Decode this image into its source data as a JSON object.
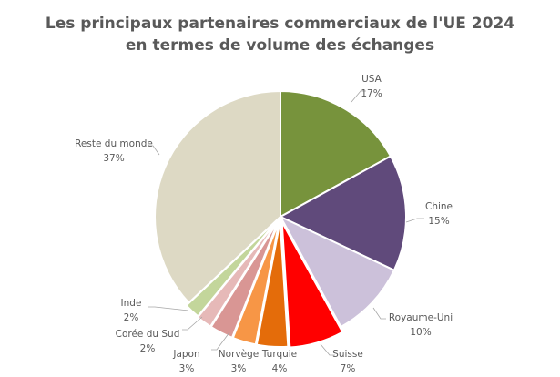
{
  "chart_data": {
    "type": "pie",
    "title": "Les principaux partenaires commerciaux de l'UE 2024 en termes de volume des échanges",
    "title_lines": [
      "Les principaux partenaires commerciaux de l'UE 2024",
      "en termes de volume des échanges"
    ],
    "categories": [
      "USA",
      "Chine",
      "Royaume-Uni",
      "Suisse",
      "Turquie",
      "Norvège",
      "Japon",
      "Corée du Sud",
      "Inde",
      "Reste du monde"
    ],
    "values": [
      17,
      15,
      10,
      7,
      4,
      3,
      3,
      2,
      2,
      37
    ],
    "labels": [
      "17%",
      "15%",
      "10%",
      "7%",
      "4%",
      "3%",
      "3%",
      "2%",
      "2%",
      "37%"
    ],
    "colors": [
      "#77933C",
      "#604A7B",
      "#CCC1DA",
      "#FF0000",
      "#E46C0A",
      "#F79646",
      "#D99694",
      "#E6B9B8",
      "#C3D69B",
      "#DDD9C4"
    ],
    "unit": "%",
    "start_angle_deg": 0,
    "direction": "clockwise",
    "legend": "none (data labels with leader lines)"
  }
}
